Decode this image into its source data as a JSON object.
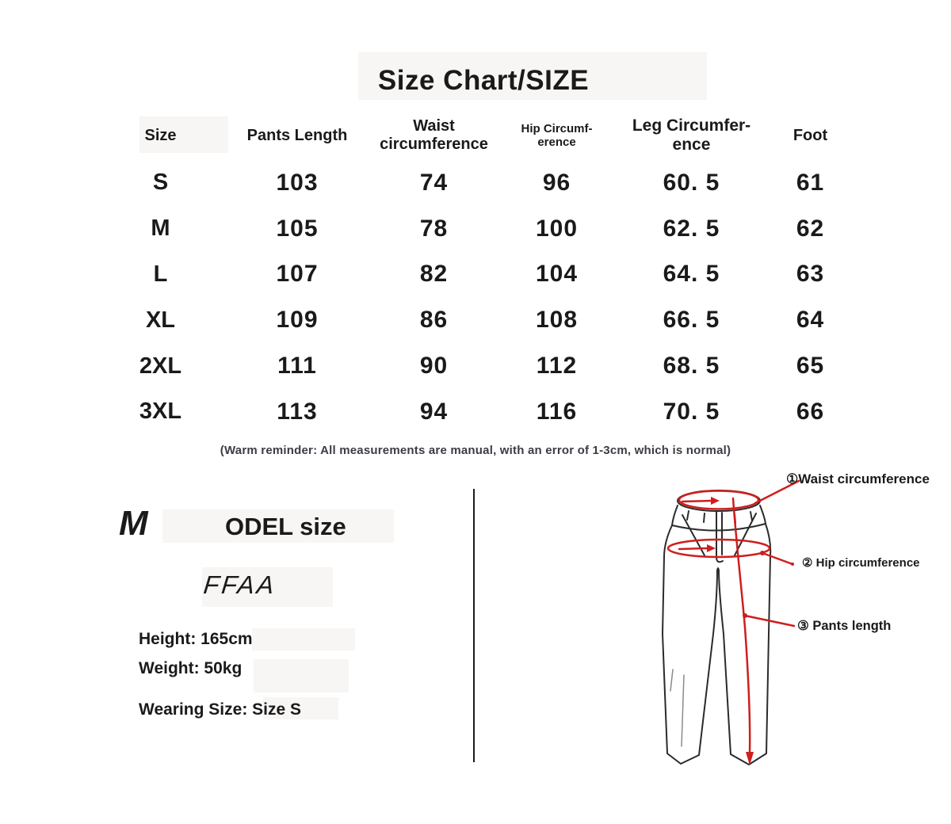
{
  "colors": {
    "text": "#1a1a1a",
    "red_accent": "#cf1e1e",
    "sketch_line": "#2b2b2b",
    "reminder_text": "#3c3c44"
  },
  "chart_data": {
    "type": "table",
    "title": "Size Chart/SIZE",
    "columns": [
      "Size",
      "Pants Length",
      "Waist\ncircumference",
      "Hip Circumf-\nerence",
      "Leg Circumfer-\nence",
      "Foot"
    ],
    "rows": [
      [
        "S",
        "103",
        "74",
        "96",
        "60. 5",
        "61"
      ],
      [
        "M",
        "105",
        "78",
        "100",
        "62. 5",
        "62"
      ],
      [
        "L",
        "107",
        "82",
        "104",
        "64. 5",
        "63"
      ],
      [
        "XL",
        "109",
        "86",
        "108",
        "66. 5",
        "64"
      ],
      [
        "2XL",
        "111",
        "90",
        "112",
        "68. 5",
        "65"
      ],
      [
        "3XL",
        "113",
        "94",
        "116",
        "70. 5",
        "66"
      ]
    ]
  },
  "reminder": "(Warm reminder: All measurements are manual, with an error of 1-3cm, which is normal)",
  "model": {
    "heading_initial": "M",
    "heading_rest": "ODEL size",
    "signature": "FFAA",
    "height": "Height: 165cm",
    "weight": "Weight: 50kg",
    "wearing": "Wearing Size: Size S"
  },
  "diagram": {
    "labels": [
      "①Waist circumference",
      "② Hip circumference",
      "③ Pants length"
    ]
  }
}
